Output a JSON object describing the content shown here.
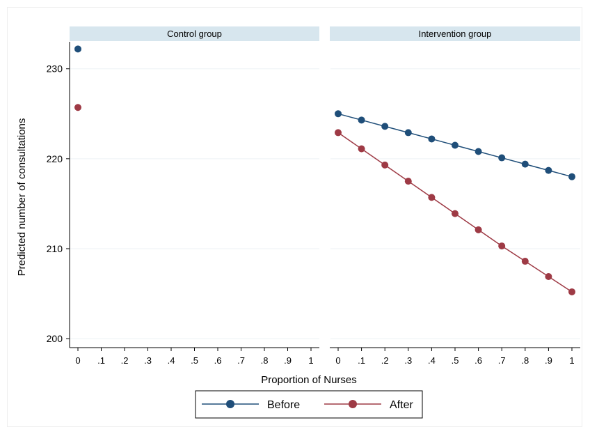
{
  "chart_data": {
    "type": "line",
    "ylabel": "Predicted number of consultations",
    "xlabel": "Proportion of Nurses",
    "ylim": [
      199,
      233
    ],
    "xlim": [
      -0.03,
      1.03
    ],
    "yticks": [
      200,
      210,
      220,
      230
    ],
    "yticklabels": [
      "200",
      "210",
      "220",
      "230"
    ],
    "xticks": [
      0,
      0.1,
      0.2,
      0.3,
      0.4,
      0.5,
      0.6,
      0.7,
      0.8,
      0.9,
      1
    ],
    "xticklabels": [
      "0",
      ".1",
      ".2",
      ".3",
      ".4",
      ".5",
      ".6",
      ".7",
      ".8",
      ".9",
      "1"
    ],
    "grid": true,
    "legend_position": "bottom",
    "panels": [
      {
        "title": "Control group",
        "series": [
          {
            "name": "Before",
            "color": "#1f4e79",
            "x": [
              0
            ],
            "y": [
              232.2
            ]
          },
          {
            "name": "After",
            "color": "#9e3a45",
            "x": [
              0
            ],
            "y": [
              225.7
            ]
          }
        ]
      },
      {
        "title": "Intervention group",
        "series": [
          {
            "name": "Before",
            "color": "#1f4e79",
            "x": [
              0,
              0.1,
              0.2,
              0.3,
              0.4,
              0.5,
              0.6,
              0.7,
              0.8,
              0.9,
              1
            ],
            "y": [
              225.0,
              224.3,
              223.6,
              222.9,
              222.2,
              221.5,
              220.8,
              220.1,
              219.4,
              218.7,
              218.0
            ]
          },
          {
            "name": "After",
            "color": "#9e3a45",
            "x": [
              0,
              0.1,
              0.2,
              0.3,
              0.4,
              0.5,
              0.6,
              0.7,
              0.8,
              0.9,
              1
            ],
            "y": [
              222.9,
              221.1,
              219.3,
              217.5,
              215.7,
              213.9,
              212.1,
              210.3,
              208.6,
              206.9,
              205.2
            ]
          }
        ]
      }
    ],
    "legend": [
      {
        "name": "Before",
        "color": "#1f4e79"
      },
      {
        "name": "After",
        "color": "#9e3a45"
      }
    ],
    "colors": {
      "panel_header_bg": "#d7e6ee",
      "grid": "#eef2f5",
      "axis": "#000000"
    }
  }
}
